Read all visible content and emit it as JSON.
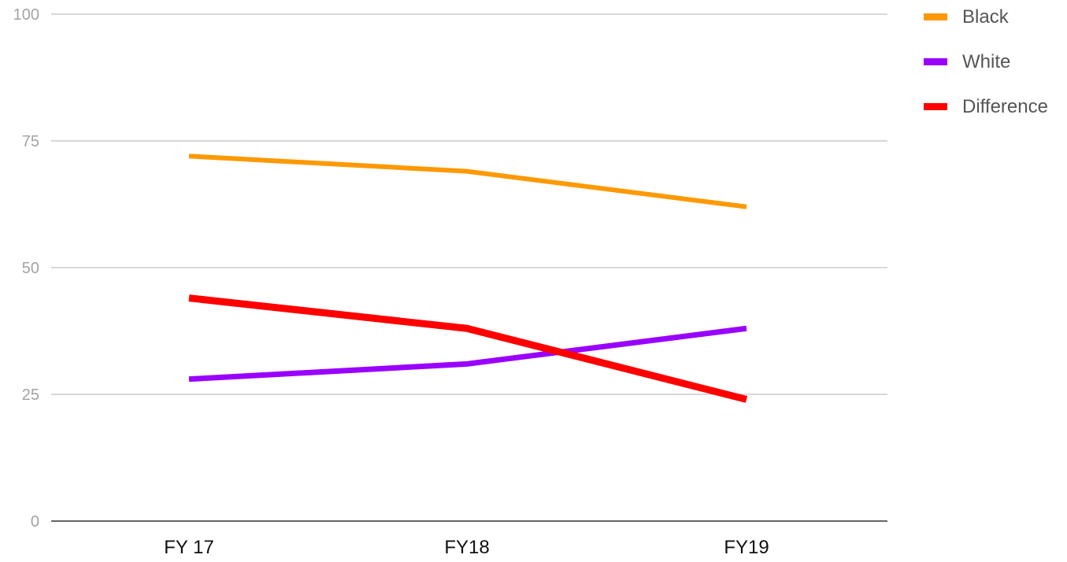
{
  "chart_data": {
    "type": "line",
    "title": "",
    "xlabel": "",
    "ylabel": "",
    "categories": [
      "FY 17",
      "FY18",
      "FY19"
    ],
    "ylim": [
      0,
      100
    ],
    "y_ticks": [
      "0",
      "25",
      "50",
      "75",
      "100"
    ],
    "grid": true,
    "legend_position": "right",
    "series": [
      {
        "name": "Black",
        "color": "#ff9900",
        "values": [
          72,
          69,
          62
        ]
      },
      {
        "name": "White",
        "color": "#9900ff",
        "values": [
          28,
          31,
          38
        ]
      },
      {
        "name": "Difference",
        "color": "#ff0000",
        "values": [
          44,
          38,
          24
        ]
      }
    ]
  }
}
